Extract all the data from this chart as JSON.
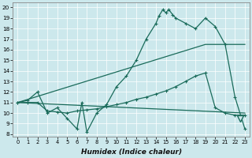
{
  "bg_color": "#cce8ec",
  "line_color": "#1a6b5a",
  "xlabel": "Humidex (Indice chaleur)",
  "xlim": [
    -0.5,
    23.5
  ],
  "ylim": [
    7.8,
    20.5
  ],
  "yticks": [
    8,
    9,
    10,
    11,
    12,
    13,
    14,
    15,
    16,
    17,
    18,
    19,
    20
  ],
  "xticks": [
    0,
    1,
    2,
    3,
    4,
    5,
    6,
    7,
    8,
    9,
    10,
    11,
    12,
    13,
    14,
    15,
    16,
    17,
    18,
    19,
    20,
    21,
    22,
    23
  ],
  "curve1_x": [
    0,
    1,
    2,
    3,
    4,
    5,
    6,
    6.5,
    7,
    8,
    9,
    10,
    11,
    12,
    13,
    14,
    14.3,
    14.7,
    15,
    15.3,
    15.7,
    16,
    17,
    18,
    19,
    20,
    21,
    22,
    23
  ],
  "curve1_y": [
    11,
    11.2,
    12,
    10,
    10.5,
    9.5,
    8.5,
    11,
    8.2,
    10,
    10.8,
    12.5,
    13.5,
    15,
    17,
    18.5,
    19.2,
    19.8,
    19.5,
    19.8,
    19.3,
    19.0,
    18.5,
    18.0,
    19.0,
    18.2,
    16.5,
    11.5,
    8.5
  ],
  "curve2_x": [
    0,
    1,
    2,
    3,
    4,
    5,
    6,
    7,
    8,
    9,
    10,
    11,
    12,
    13,
    14,
    15,
    16,
    17,
    18,
    19,
    20,
    21,
    22,
    23
  ],
  "curve2_y": [
    11,
    11,
    11,
    10.2,
    10.1,
    10.0,
    10.2,
    10.3,
    10.4,
    10.6,
    10.8,
    11.0,
    11.3,
    11.5,
    11.8,
    12.1,
    12.5,
    13.0,
    13.5,
    13.8,
    10.5,
    10.0,
    9.8,
    9.8
  ],
  "line3_x": [
    0,
    23
  ],
  "line3_y": [
    11,
    10.0
  ],
  "line4_x": [
    0,
    19,
    23
  ],
  "line4_y": [
    11,
    16.5,
    16.5
  ],
  "tri_x": 22.5,
  "tri_y": 9.5
}
